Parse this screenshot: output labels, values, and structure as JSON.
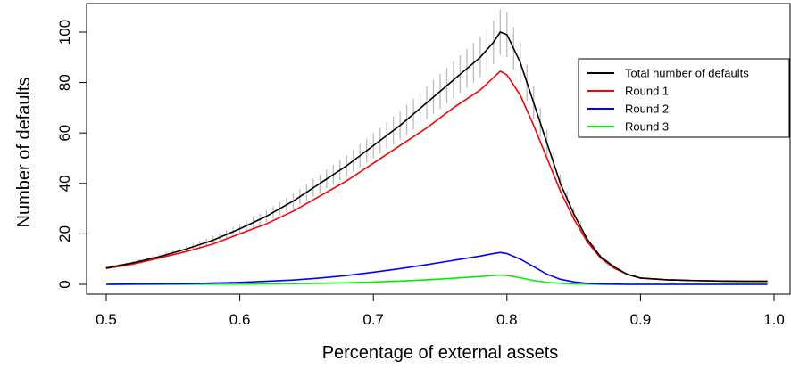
{
  "chart_data": {
    "type": "line",
    "title": "",
    "xlabel": "Percentage of external assets",
    "ylabel": "Number of defaults",
    "xlim": [
      0.5,
      1.0
    ],
    "ylim": [
      0,
      105
    ],
    "x_ticks": [
      "0.5",
      "0.6",
      "0.7",
      "0.8",
      "0.9",
      "1.0"
    ],
    "y_ticks": [
      "0",
      "20",
      "40",
      "60",
      "80",
      "100"
    ],
    "grid": false,
    "legend_position": "right",
    "x": [
      0.5,
      0.52,
      0.54,
      0.56,
      0.58,
      0.6,
      0.62,
      0.64,
      0.66,
      0.68,
      0.7,
      0.72,
      0.74,
      0.76,
      0.78,
      0.79,
      0.795,
      0.8,
      0.81,
      0.82,
      0.83,
      0.84,
      0.85,
      0.86,
      0.87,
      0.88,
      0.89,
      0.9,
      0.92,
      0.94,
      0.96,
      0.98,
      0.995
    ],
    "series": [
      {
        "name": "Total number of defaults",
        "color": "#000000",
        "values": [
          6.5,
          8.5,
          11,
          14,
          17.5,
          22,
          27,
          33,
          40,
          47,
          55,
          63,
          72,
          81,
          90,
          96,
          100,
          99,
          88,
          72,
          56,
          40,
          28,
          18,
          11,
          7,
          4,
          2.5,
          1.8,
          1.5,
          1.3,
          1.2,
          1.2
        ]
      },
      {
        "name": "Round 1",
        "color": "#ff0000",
        "values": [
          6.3,
          8,
          10.5,
          13,
          16,
          20,
          24,
          29,
          35,
          41,
          48,
          55,
          62,
          70,
          77,
          82,
          84.5,
          83,
          75,
          63,
          50,
          37,
          26,
          17,
          10.5,
          6.5,
          4,
          2.5,
          1.8,
          1.5,
          1.3,
          1.2,
          1.2
        ]
      },
      {
        "name": "Round 2",
        "color": "#0000ff",
        "values": [
          0,
          0.1,
          0.2,
          0.3,
          0.5,
          0.8,
          1.2,
          1.7,
          2.5,
          3.5,
          4.8,
          6.2,
          7.8,
          9.5,
          11.2,
          12.2,
          12.6,
          12.2,
          10,
          7,
          4,
          2,
          1,
          0.4,
          0.2,
          0.1,
          0,
          0,
          0,
          0,
          0,
          0,
          0
        ]
      },
      {
        "name": "Round 3",
        "color": "#00ee00",
        "values": [
          0,
          0,
          0,
          0,
          0.1,
          0.1,
          0.2,
          0.3,
          0.4,
          0.6,
          0.9,
          1.3,
          1.8,
          2.4,
          3.1,
          3.5,
          3.7,
          3.5,
          2.6,
          1.5,
          0.8,
          0.4,
          0.2,
          0.1,
          0,
          0,
          0,
          0,
          0,
          0,
          0,
          0,
          0
        ]
      }
    ],
    "error_bars": {
      "color": "#bbbbbb",
      "x_start": 0.5,
      "x_end": 0.995,
      "count": 100
    }
  }
}
